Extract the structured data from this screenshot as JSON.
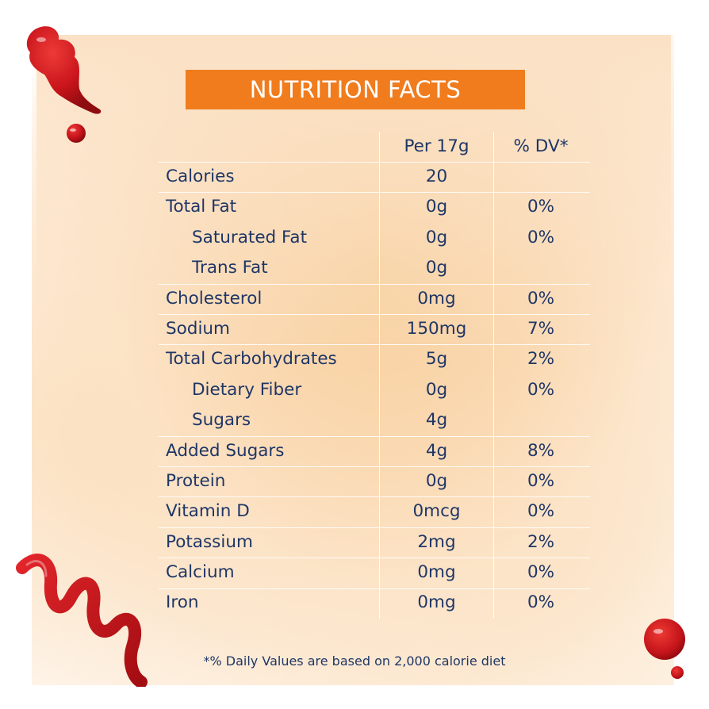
{
  "title": "NUTRITION FACTS",
  "header": {
    "name": "",
    "amount": "Per 17g",
    "dv": "% DV*"
  },
  "rows": [
    {
      "name": "Calories",
      "amount": "20",
      "dv": ""
    },
    {
      "name": "Total Fat",
      "amount": "0g",
      "dv": "0%"
    },
    {
      "name": "Saturated Fat",
      "amount": "0g",
      "dv": "0%"
    },
    {
      "name": "Trans Fat",
      "amount": "0g",
      "dv": ""
    },
    {
      "name": "Cholesterol",
      "amount": "0mg",
      "dv": "0%"
    },
    {
      "name": "Sodium",
      "amount": "150mg",
      "dv": "7%"
    },
    {
      "name": "Total Carbohydrates",
      "amount": "5g",
      "dv": "2%"
    },
    {
      "name": "Dietary Fiber",
      "amount": "0g",
      "dv": "0%"
    },
    {
      "name": "Sugars",
      "amount": "4g",
      "dv": ""
    },
    {
      "name": "Added Sugars",
      "amount": "4g",
      "dv": "8%"
    },
    {
      "name": "Protein",
      "amount": "0g",
      "dv": "0%"
    },
    {
      "name": "Vitamin D",
      "amount": "0mcg",
      "dv": "0%"
    },
    {
      "name": "Potassium",
      "amount": "2mg",
      "dv": "2%"
    },
    {
      "name": "Calcium",
      "amount": "0mg",
      "dv": "0%"
    },
    {
      "name": "Iron",
      "amount": "0mg",
      "dv": "0%"
    }
  ],
  "footnote": "*% Daily Values are based on 2,000 calorie diet",
  "colors": {
    "title_bg": "#f07c1e",
    "text": "#1f3666",
    "ketchup": "#c8141b"
  },
  "decorations": [
    "ketchup-splash",
    "ketchup-drop",
    "ketchup-squiggle",
    "ketchup-blob"
  ]
}
